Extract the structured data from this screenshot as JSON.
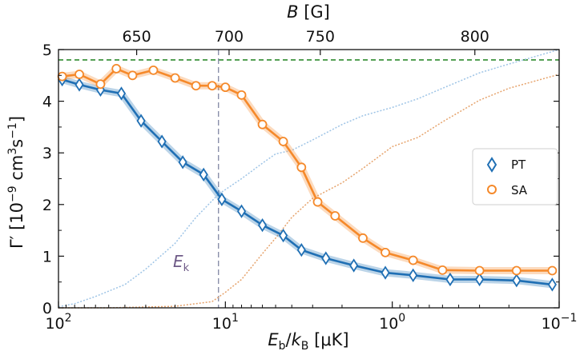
{
  "chart_data": {
    "type": "line",
    "title": "",
    "xlabel": "E_b/k_B [μK]",
    "xlabel_parts": {
      "E": "E",
      "b": "b",
      "slash": "/",
      "k": "k",
      "B": "B",
      "unit": " [μK]"
    },
    "ylabel": "Γ′ [10⁻⁹ cm³s⁻¹]",
    "ylabel_parts": {
      "gamma": "Γ′ [10",
      "exp1": "−9",
      "mid": " cm",
      "exp2": "3",
      "s": "s",
      "exp3": "−1",
      "close": "]"
    },
    "x_scale": "log-reversed",
    "xlim": [
      100,
      0.1
    ],
    "ylim": [
      0,
      5
    ],
    "x_ticks": [
      {
        "value": 100,
        "base": "10",
        "exp": "2"
      },
      {
        "value": 10,
        "base": "10",
        "exp": "1"
      },
      {
        "value": 1,
        "base": "10",
        "exp": "0"
      },
      {
        "value": 0.1,
        "base": "10",
        "exp": "−1"
      }
    ],
    "y_ticks": [
      "0",
      "1",
      "2",
      "3",
      "4",
      "5"
    ],
    "top_axis": {
      "label": "B [G]",
      "label_var": "B",
      "label_unit": " [G]",
      "ticks": [
        {
          "label": "650",
          "at_Eb": 34
        },
        {
          "label": "700",
          "at_Eb": 9.5
        },
        {
          "label": "750",
          "at_Eb": 2.7
        },
        {
          "label": "800",
          "at_Eb": 0.32
        }
      ]
    },
    "hline": {
      "y": 4.8,
      "style": "dashed",
      "color": "#2e8b2e"
    },
    "vline": {
      "x": 11,
      "style": "dashed",
      "color": "#8a8faa",
      "label": "E",
      "label_sub": "k"
    },
    "legend": {
      "position": "right",
      "entries": [
        {
          "name": "PT",
          "marker": "diamond",
          "color": "#1f6fb4"
        },
        {
          "name": "SA",
          "marker": "circle",
          "color": "#f5892a"
        }
      ]
    },
    "series": [
      {
        "name": "PT",
        "color": "#1f6fb4",
        "marker": "diamond",
        "x": [
          95,
          75,
          56,
          42,
          32,
          24,
          18,
          13.5,
          10.5,
          8,
          6,
          4.5,
          3.5,
          2.5,
          1.7,
          1.1,
          0.75,
          0.45,
          0.3,
          0.18,
          0.11
        ],
        "y": [
          4.42,
          4.32,
          4.22,
          4.15,
          3.62,
          3.22,
          2.82,
          2.58,
          2.1,
          1.87,
          1.6,
          1.4,
          1.12,
          0.96,
          0.82,
          0.68,
          0.63,
          0.55,
          0.55,
          0.53,
          0.45
        ]
      },
      {
        "name": "SA",
        "color": "#f5892a",
        "marker": "circle",
        "x": [
          95,
          75,
          56,
          45,
          36,
          27,
          20,
          15,
          12,
          10,
          8,
          6,
          4.5,
          3.5,
          2.8,
          2.2,
          1.5,
          1.1,
          0.75,
          0.5,
          0.3,
          0.18,
          0.11
        ],
        "y": [
          4.48,
          4.52,
          4.33,
          4.63,
          4.5,
          4.6,
          4.45,
          4.3,
          4.3,
          4.27,
          4.12,
          3.55,
          3.22,
          2.72,
          2.05,
          1.78,
          1.35,
          1.07,
          0.92,
          0.73,
          0.72,
          0.72,
          0.72
        ]
      },
      {
        "name": "PT (dotted)",
        "color": "#9ec4e6",
        "marker": "none",
        "x": [
          100,
          80,
          60,
          40,
          30,
          20,
          15,
          11,
          8,
          6,
          5,
          4,
          3,
          2,
          1.5,
          1,
          0.7,
          0.5,
          0.3,
          0.2,
          0.1
        ],
        "y": [
          0.02,
          0.08,
          0.22,
          0.45,
          0.75,
          1.25,
          1.75,
          2.2,
          2.5,
          2.8,
          2.98,
          3.05,
          3.25,
          3.55,
          3.72,
          3.88,
          4.05,
          4.25,
          4.55,
          4.72,
          5.0
        ]
      },
      {
        "name": "SA (dotted)",
        "color": "#e6a36c",
        "marker": "none",
        "x": [
          100,
          50,
          20,
          12,
          10,
          8,
          6,
          5,
          4,
          3,
          2,
          1.5,
          1,
          0.7,
          0.5,
          0.3,
          0.2,
          0.1
        ],
        "y": [
          0,
          0,
          0.03,
          0.12,
          0.3,
          0.55,
          1.05,
          1.35,
          1.75,
          2.12,
          2.42,
          2.7,
          3.12,
          3.3,
          3.6,
          4.02,
          4.25,
          4.52
        ]
      }
    ]
  }
}
